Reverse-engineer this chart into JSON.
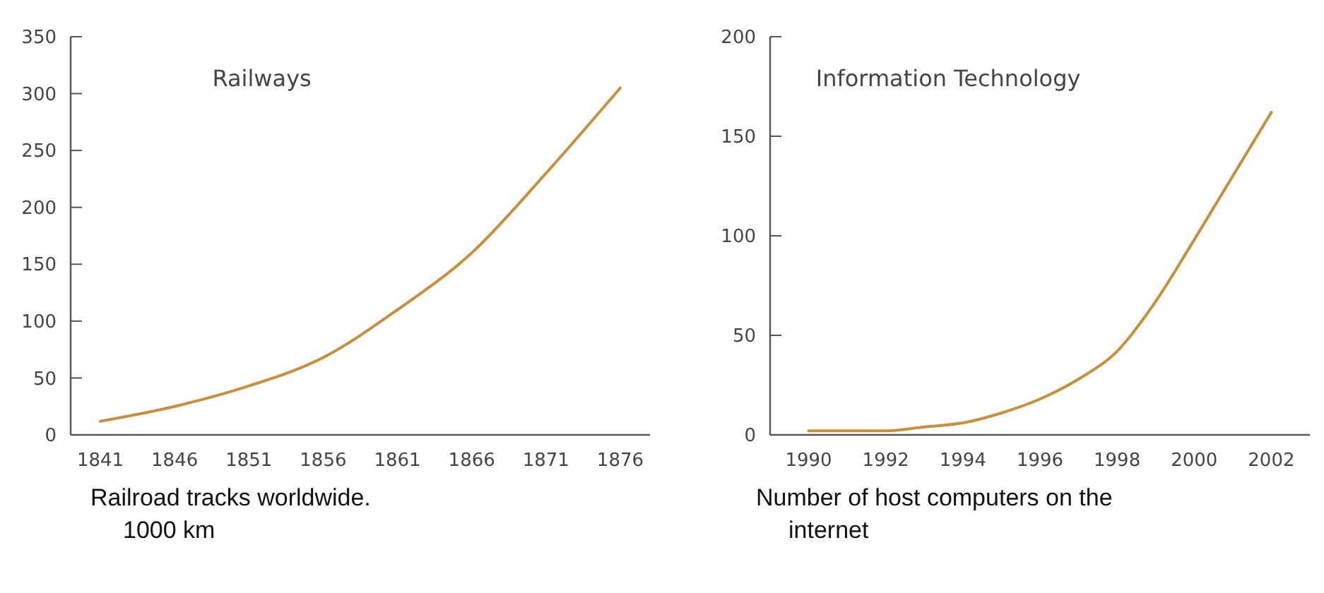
{
  "chart_data": [
    {
      "type": "line",
      "title": "Railways",
      "x": [
        1841,
        1846,
        1851,
        1856,
        1861,
        1866,
        1871,
        1876
      ],
      "series": [
        {
          "color": "#c9903c",
          "values": [
            12,
            25,
            43,
            68,
            110,
            160,
            230,
            305
          ]
        }
      ],
      "xlim": [
        1839,
        1878
      ],
      "xticks": [
        1841,
        1846,
        1851,
        1856,
        1861,
        1866,
        1871,
        1876
      ],
      "ylim": [
        0,
        350
      ],
      "yticks": [
        0,
        50,
        100,
        150,
        200,
        250,
        300,
        350
      ],
      "grid": false,
      "annotations": [
        "Railroad tracks worldwide.",
        "1000 km"
      ]
    },
    {
      "type": "line",
      "title": "Information Technology",
      "x": [
        1990,
        1991,
        1992,
        1993,
        1994,
        1995,
        1996,
        1997,
        1998,
        1999,
        2000,
        2001,
        2002
      ],
      "series": [
        {
          "color": "#c9903c",
          "values": [
            2,
            2,
            2,
            4,
            6,
            11,
            18,
            28,
            42,
            67,
            98,
            130,
            162
          ]
        }
      ],
      "xlim": [
        1989,
        2003
      ],
      "xticks": [
        1990,
        1992,
        1994,
        1996,
        1998,
        2000,
        2002
      ],
      "ylim": [
        0,
        200
      ],
      "yticks": [
        0,
        50,
        100,
        150,
        200
      ],
      "grid": false,
      "annotations": [
        "Number of host computers on the",
        "internet"
      ]
    }
  ]
}
